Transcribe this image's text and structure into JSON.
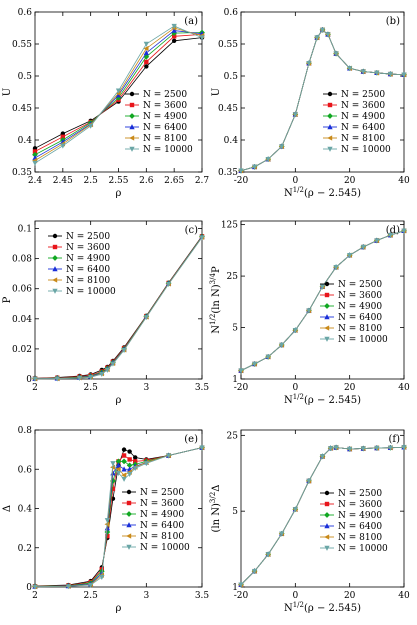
{
  "chart_data": [
    {
      "type": "line",
      "panel_label": "(a)",
      "xlabel": "ρ",
      "ylabel": "U",
      "xlim": [
        2.4,
        2.7
      ],
      "ylim": [
        0.35,
        0.6
      ],
      "xticks": [
        2.4,
        2.45,
        2.5,
        2.55,
        2.6,
        2.65,
        2.7
      ],
      "xtick_labels": [
        "2.4",
        "2.45",
        "2.5",
        "2.55",
        "2.6",
        "2.65",
        "2.7"
      ],
      "yticks": [
        0.35,
        0.4,
        0.45,
        0.5,
        0.55,
        0.6
      ],
      "ytick_labels": [
        "0.35",
        "0.4",
        "0.45",
        "0.5",
        "0.55",
        "0.6"
      ],
      "legend_position": "lower-right",
      "x": [
        2.4,
        2.45,
        2.5,
        2.55,
        2.6,
        2.65,
        2.7
      ],
      "series": [
        {
          "name": "N = 2500",
          "color": "#000000",
          "marker": "circle",
          "values": [
            0.387,
            0.41,
            0.43,
            0.46,
            0.515,
            0.555,
            0.56
          ]
        },
        {
          "name": "N = 3600",
          "color": "#e8151b",
          "marker": "square",
          "values": [
            0.382,
            0.405,
            0.428,
            0.463,
            0.522,
            0.562,
            0.565
          ]
        },
        {
          "name": "N = 4900",
          "color": "#11a822",
          "marker": "diamond",
          "values": [
            0.377,
            0.4,
            0.427,
            0.466,
            0.53,
            0.567,
            0.568
          ]
        },
        {
          "name": "N = 6400",
          "color": "#1a2fd8",
          "marker": "triangle-up",
          "values": [
            0.372,
            0.397,
            0.425,
            0.47,
            0.536,
            0.571,
            0.566
          ]
        },
        {
          "name": "N = 8100",
          "color": "#c98a1a",
          "marker": "triangle-left",
          "values": [
            0.368,
            0.394,
            0.424,
            0.473,
            0.543,
            0.575,
            0.563
          ]
        },
        {
          "name": "N = 10000",
          "color": "#6aa6a6",
          "marker": "triangle-down",
          "values": [
            0.364,
            0.391,
            0.422,
            0.477,
            0.55,
            0.578,
            0.56
          ]
        }
      ]
    },
    {
      "type": "line",
      "panel_label": "(b)",
      "xlabel": "N^{1/2}(ρ − 2.545)",
      "ylabel": "U",
      "xlim": [
        -20,
        40
      ],
      "ylim": [
        0.35,
        0.6
      ],
      "xticks": [
        -20,
        0,
        20,
        40
      ],
      "xtick_labels": [
        "-20",
        "0",
        "20",
        "40"
      ],
      "yticks": [
        0.35,
        0.4,
        0.45,
        0.5,
        0.55,
        0.6
      ],
      "ytick_labels": [
        "0.35",
        "0.4",
        "0.45",
        "0.5",
        "0.55",
        "0.6"
      ],
      "legend_position": "lower-right",
      "x": [
        -20,
        -15,
        -10,
        -5,
        0,
        5,
        8,
        10,
        12,
        15,
        20,
        25,
        30,
        35,
        40
      ],
      "series": [
        {
          "name": "N = 2500",
          "color": "#000000",
          "marker": "circle",
          "values": [
            0.352,
            0.358,
            0.37,
            0.39,
            0.44,
            0.52,
            0.56,
            0.572,
            0.565,
            0.535,
            0.512,
            0.507,
            0.505,
            0.503,
            0.502
          ]
        },
        {
          "name": "N = 3600",
          "color": "#e8151b",
          "marker": "square",
          "values": [
            0.352,
            0.358,
            0.37,
            0.39,
            0.44,
            0.52,
            0.56,
            0.572,
            0.565,
            0.535,
            0.512,
            0.507,
            0.505,
            0.503,
            0.502
          ]
        },
        {
          "name": "N = 4900",
          "color": "#11a822",
          "marker": "diamond",
          "values": [
            0.352,
            0.358,
            0.37,
            0.39,
            0.44,
            0.52,
            0.56,
            0.572,
            0.565,
            0.535,
            0.512,
            0.507,
            0.505,
            0.503,
            0.502
          ]
        },
        {
          "name": "N = 6400",
          "color": "#1a2fd8",
          "marker": "triangle-up",
          "values": [
            0.352,
            0.358,
            0.37,
            0.39,
            0.44,
            0.52,
            0.56,
            0.572,
            0.565,
            0.535,
            0.512,
            0.507,
            0.505,
            0.503,
            0.502
          ]
        },
        {
          "name": "N = 8100",
          "color": "#c98a1a",
          "marker": "triangle-left",
          "values": [
            0.352,
            0.358,
            0.37,
            0.39,
            0.44,
            0.52,
            0.56,
            0.572,
            0.565,
            0.535,
            0.512,
            0.507,
            0.505,
            0.503,
            0.502
          ]
        },
        {
          "name": "N = 10000",
          "color": "#6aa6a6",
          "marker": "triangle-down",
          "values": [
            0.352,
            0.358,
            0.37,
            0.39,
            0.44,
            0.52,
            0.56,
            0.572,
            0.565,
            0.535,
            0.512,
            0.507,
            0.505,
            0.503,
            0.502
          ]
        }
      ]
    },
    {
      "type": "line",
      "panel_label": "(c)",
      "xlabel": "ρ",
      "ylabel": "P",
      "xlim": [
        2,
        3.5
      ],
      "ylim": [
        0,
        0.105
      ],
      "xticks": [
        2,
        2.5,
        3,
        3.5
      ],
      "xtick_labels": [
        "2",
        "2.5",
        "3",
        "3.5"
      ],
      "yticks": [
        0,
        0.02,
        0.04,
        0.06,
        0.08,
        0.1
      ],
      "ytick_labels": [
        "0",
        "0.02",
        "0.04",
        "0.06",
        "0.08",
        "0.1"
      ],
      "legend_position": "top-left",
      "x": [
        2.0,
        2.2,
        2.4,
        2.5,
        2.6,
        2.65,
        2.7,
        2.8,
        3.0,
        3.2,
        3.5
      ],
      "series": [
        {
          "name": "N = 2500",
          "color": "#000000",
          "marker": "circle",
          "values": [
            0.0005,
            0.001,
            0.002,
            0.003,
            0.006,
            0.008,
            0.012,
            0.021,
            0.042,
            0.064,
            0.095
          ]
        },
        {
          "name": "N = 3600",
          "color": "#e8151b",
          "marker": "square",
          "values": [
            0.0004,
            0.0008,
            0.0016,
            0.0025,
            0.005,
            0.0075,
            0.0115,
            0.0205,
            0.0418,
            0.0638,
            0.0948
          ]
        },
        {
          "name": "N = 4900",
          "color": "#11a822",
          "marker": "diamond",
          "values": [
            0.0003,
            0.0006,
            0.0012,
            0.002,
            0.0045,
            0.007,
            0.011,
            0.02,
            0.0416,
            0.0636,
            0.0946
          ]
        },
        {
          "name": "N = 6400",
          "color": "#1a2fd8",
          "marker": "triangle-up",
          "values": [
            0.0002,
            0.0004,
            0.001,
            0.0017,
            0.004,
            0.0066,
            0.0107,
            0.0197,
            0.0414,
            0.0634,
            0.0944
          ]
        },
        {
          "name": "N = 8100",
          "color": "#c98a1a",
          "marker": "triangle-left",
          "values": [
            0.0002,
            0.0003,
            0.0008,
            0.0014,
            0.0036,
            0.0063,
            0.0104,
            0.0194,
            0.0412,
            0.0632,
            0.0942
          ]
        },
        {
          "name": "N = 10000",
          "color": "#6aa6a6",
          "marker": "triangle-down",
          "values": [
            0.0001,
            0.0002,
            0.0006,
            0.0012,
            0.0032,
            0.006,
            0.0101,
            0.0191,
            0.041,
            0.063,
            0.094
          ]
        }
      ]
    },
    {
      "type": "line",
      "panel_label": "(d)",
      "xlabel": "N^{1/2}(ρ − 2.545)",
      "ylabel": "N^{1/2}(ln N)^{3/4}P",
      "xlim": [
        -20,
        40
      ],
      "ylim": [
        0,
        125
      ],
      "xticks": [
        -20,
        0,
        20,
        40
      ],
      "xtick_labels": [
        "-20",
        "0",
        "20",
        "40"
      ],
      "yticks": [
        1,
        5,
        25,
        125
      ],
      "ytick_labels": [
        "1",
        "5",
        "25",
        "125"
      ],
      "legend_position": "lower-right",
      "x": [
        -20,
        -15,
        -10,
        -5,
        0,
        5,
        10,
        15,
        20,
        25,
        30,
        35,
        40
      ],
      "series": [
        {
          "name": "N = 2500",
          "color": "#000000",
          "marker": "circle",
          "values": [
            1.3,
            1.6,
            2.0,
            2.9,
            4.6,
            8.5,
            18,
            33,
            48,
            62,
            76,
            90,
            103
          ]
        },
        {
          "name": "N = 3600",
          "color": "#e8151b",
          "marker": "square",
          "values": [
            1.3,
            1.6,
            2.0,
            2.9,
            4.6,
            8.5,
            18,
            33,
            48,
            62,
            76,
            90,
            103
          ]
        },
        {
          "name": "N = 4900",
          "color": "#11a822",
          "marker": "diamond",
          "values": [
            1.3,
            1.6,
            2.0,
            2.9,
            4.6,
            8.5,
            18,
            33,
            48,
            62,
            76,
            90,
            103
          ]
        },
        {
          "name": "N = 6400",
          "color": "#1a2fd8",
          "marker": "triangle-up",
          "values": [
            1.3,
            1.6,
            2.0,
            2.9,
            4.6,
            8.5,
            18,
            33,
            48,
            62,
            76,
            90,
            103
          ]
        },
        {
          "name": "N = 8100",
          "color": "#c98a1a",
          "marker": "triangle-left",
          "values": [
            1.3,
            1.6,
            2.0,
            2.9,
            4.6,
            8.5,
            18,
            33,
            48,
            62,
            76,
            90,
            103
          ]
        },
        {
          "name": "N = 10000",
          "color": "#6aa6a6",
          "marker": "triangle-down",
          "values": [
            1.3,
            1.6,
            2.0,
            2.9,
            4.6,
            8.5,
            18,
            33,
            48,
            62,
            76,
            90,
            103
          ]
        }
      ]
    },
    {
      "type": "line",
      "panel_label": "(e)",
      "xlabel": "ρ",
      "ylabel": "Δ",
      "xlim": [
        2,
        3.5
      ],
      "ylim": [
        0,
        0.8
      ],
      "xticks": [
        2,
        2.5,
        3,
        3.5
      ],
      "xtick_labels": [
        "2",
        "2.5",
        "3",
        "3.5"
      ],
      "yticks": [
        0,
        0.2,
        0.4,
        0.6,
        0.8
      ],
      "ytick_labels": [
        "0",
        "0.2",
        "0.4",
        "0.6",
        "0.8"
      ],
      "legend_position": "lower-right",
      "x": [
        2.0,
        2.3,
        2.5,
        2.6,
        2.65,
        2.7,
        2.75,
        2.8,
        2.85,
        2.9,
        3.0,
        3.2,
        3.5
      ],
      "series": [
        {
          "name": "N = 2500",
          "color": "#000000",
          "marker": "circle",
          "values": [
            0.005,
            0.01,
            0.03,
            0.1,
            0.25,
            0.45,
            0.62,
            0.7,
            0.69,
            0.66,
            0.65,
            0.67,
            0.71
          ]
        },
        {
          "name": "N = 3600",
          "color": "#e8151b",
          "marker": "square",
          "values": [
            0.004,
            0.008,
            0.025,
            0.09,
            0.26,
            0.5,
            0.64,
            0.67,
            0.65,
            0.64,
            0.645,
            0.67,
            0.71
          ]
        },
        {
          "name": "N = 4900",
          "color": "#11a822",
          "marker": "diamond",
          "values": [
            0.003,
            0.006,
            0.02,
            0.08,
            0.28,
            0.54,
            0.64,
            0.64,
            0.62,
            0.625,
            0.64,
            0.67,
            0.71
          ]
        },
        {
          "name": "N = 6400",
          "color": "#1a2fd8",
          "marker": "triangle-up",
          "values": [
            0.002,
            0.005,
            0.015,
            0.07,
            0.3,
            0.58,
            0.62,
            0.6,
            0.6,
            0.615,
            0.635,
            0.67,
            0.71
          ]
        },
        {
          "name": "N = 8100",
          "color": "#c98a1a",
          "marker": "triangle-left",
          "values": [
            0.002,
            0.004,
            0.012,
            0.06,
            0.32,
            0.61,
            0.6,
            0.57,
            0.585,
            0.61,
            0.635,
            0.67,
            0.71
          ]
        },
        {
          "name": "N = 10000",
          "color": "#6aa6a6",
          "marker": "triangle-down",
          "values": [
            0.001,
            0.003,
            0.01,
            0.05,
            0.34,
            0.63,
            0.58,
            0.55,
            0.575,
            0.605,
            0.63,
            0.67,
            0.71
          ]
        }
      ]
    },
    {
      "type": "line",
      "panel_label": "(f)",
      "xlabel": "N^{1/2}(ρ − 2.545)",
      "ylabel": "(ln N)^{3/2}Δ",
      "xlim": [
        -20,
        40
      ],
      "ylim": [
        0,
        25
      ],
      "xticks": [
        -20,
        0,
        20,
        40
      ],
      "xtick_labels": [
        "-20",
        "0",
        "20",
        "40"
      ],
      "yticks": [
        1,
        5,
        25
      ],
      "ytick_labels": [
        "1",
        "5",
        "25"
      ],
      "legend_position": "lower-right",
      "x": [
        -20,
        -15,
        -10,
        -5,
        0,
        5,
        10,
        13,
        15,
        20,
        25,
        30,
        35,
        40
      ],
      "series": [
        {
          "name": "N = 2500",
          "color": "#000000",
          "marker": "circle",
          "values": [
            1.05,
            1.4,
            2.0,
            3.1,
            5.2,
            9.5,
            16,
            19,
            19.3,
            18.7,
            18.9,
            19.1,
            19.2,
            19.4
          ]
        },
        {
          "name": "N = 3600",
          "color": "#e8151b",
          "marker": "square",
          "values": [
            1.05,
            1.4,
            2.0,
            3.1,
            5.2,
            9.5,
            16,
            19,
            19.3,
            18.7,
            18.9,
            19.1,
            19.2,
            19.4
          ]
        },
        {
          "name": "N = 4900",
          "color": "#11a822",
          "marker": "diamond",
          "values": [
            1.05,
            1.4,
            2.0,
            3.1,
            5.2,
            9.5,
            16,
            19,
            19.3,
            18.7,
            18.9,
            19.1,
            19.2,
            19.4
          ]
        },
        {
          "name": "N = 6400",
          "color": "#1a2fd8",
          "marker": "triangle-up",
          "values": [
            1.05,
            1.4,
            2.0,
            3.1,
            5.2,
            9.5,
            16,
            19,
            19.3,
            18.7,
            18.9,
            19.1,
            19.2,
            19.4
          ]
        },
        {
          "name": "N = 8100",
          "color": "#c98a1a",
          "marker": "triangle-left",
          "values": [
            1.05,
            1.4,
            2.0,
            3.1,
            5.2,
            9.5,
            16,
            19,
            19.3,
            18.7,
            18.9,
            19.1,
            19.2,
            19.4
          ]
        },
        {
          "name": "N = 10000",
          "color": "#6aa6a6",
          "marker": "triangle-down",
          "values": [
            1.05,
            1.4,
            2.0,
            3.1,
            5.2,
            9.5,
            16,
            19,
            19.3,
            18.7,
            18.9,
            19.1,
            19.2,
            19.4
          ]
        }
      ]
    }
  ]
}
